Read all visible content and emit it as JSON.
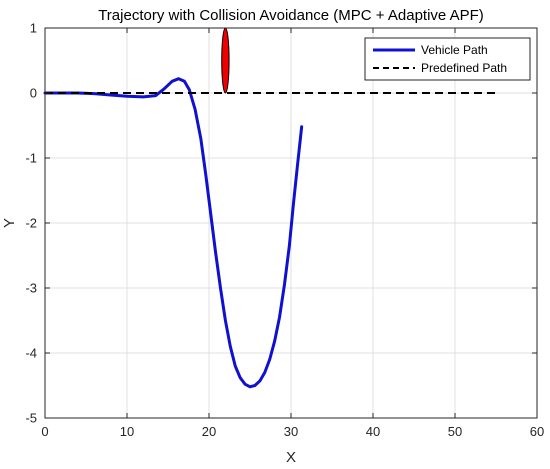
{
  "chart_data": {
    "type": "line",
    "title": "Trajectory with Collision Avoidance (MPC + Adaptive APF)",
    "xlabel": "X",
    "ylabel": "Y",
    "xlim": [
      0,
      60
    ],
    "ylim": [
      -5,
      1
    ],
    "xticks": [
      0,
      10,
      20,
      30,
      40,
      50,
      60
    ],
    "yticks": [
      -5,
      -4,
      -3,
      -2,
      -1,
      0,
      1
    ],
    "grid": true,
    "legend": "top-right",
    "series": [
      {
        "name": "Vehicle Path",
        "color": "#1010d0",
        "style": "solid",
        "x": [
          0,
          2,
          4,
          6,
          8,
          10,
          12,
          13.5,
          14.5,
          15.5,
          16.3,
          17,
          17.6,
          18.3,
          19,
          19.6,
          20.2,
          20.8,
          21.4,
          22,
          22.6,
          23.2,
          23.8,
          24.4,
          25,
          25.6,
          26.2,
          26.8,
          27.4,
          28,
          28.6,
          29.2,
          29.8,
          30.3,
          30.8,
          31.3
        ],
        "y": [
          0,
          0,
          0,
          -0.01,
          -0.03,
          -0.05,
          -0.06,
          -0.04,
          0.06,
          0.18,
          0.22,
          0.18,
          0.05,
          -0.25,
          -0.7,
          -1.25,
          -1.85,
          -2.45,
          -3.0,
          -3.5,
          -3.9,
          -4.2,
          -4.38,
          -4.48,
          -4.52,
          -4.5,
          -4.43,
          -4.3,
          -4.1,
          -3.82,
          -3.45,
          -2.95,
          -2.35,
          -1.7,
          -1.1,
          -0.52
        ]
      },
      {
        "name": "Predefined Path",
        "color": "#000000",
        "style": "dashed",
        "x": [
          0,
          55
        ],
        "y": [
          0,
          0
        ]
      }
    ],
    "obstacle": {
      "shape": "ellipse",
      "color": "#ee0000",
      "center": [
        22,
        0.5
      ],
      "radius_x": 0.45,
      "radius_y": 0.5
    }
  }
}
